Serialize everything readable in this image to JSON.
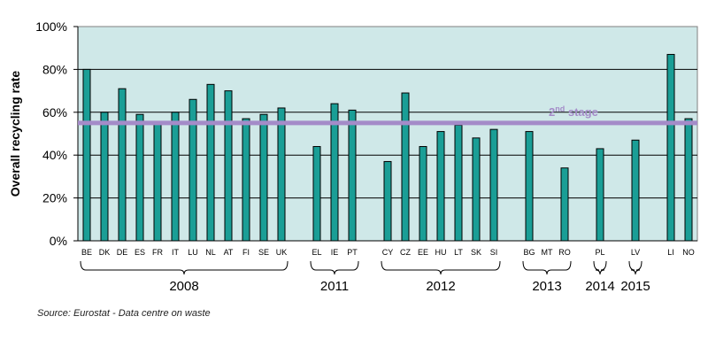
{
  "chart_data": {
    "type": "bar",
    "ylabel": "Overall recycling rate",
    "ylim": [
      0,
      100
    ],
    "yticks": [
      "0%",
      "20%",
      "40%",
      "60%",
      "80%",
      "100%"
    ],
    "categories": [
      "BE",
      "DK",
      "DE",
      "ES",
      "FR",
      "IT",
      "LU",
      "NL",
      "AT",
      "FI",
      "SE",
      "UK",
      "EL",
      "IE",
      "PT",
      "CY",
      "CZ",
      "EE",
      "HU",
      "LT",
      "SK",
      "SI",
      "BG",
      "MT",
      "RO",
      "PL",
      "LV",
      "LI",
      "NO"
    ],
    "values": [
      80,
      60,
      71,
      59,
      55,
      60,
      66,
      73,
      70,
      57,
      59,
      62,
      44,
      64,
      61,
      37,
      69,
      44,
      51,
      54,
      48,
      52,
      51,
      null,
      34,
      43,
      47,
      87,
      57
    ],
    "groups": [
      {
        "label": "2008",
        "categories": [
          "BE",
          "DK",
          "DE",
          "ES",
          "FR",
          "IT",
          "LU",
          "NL",
          "AT",
          "FI",
          "SE",
          "UK"
        ]
      },
      {
        "label": "2011",
        "categories": [
          "EL",
          "IE",
          "PT"
        ]
      },
      {
        "label": "2012",
        "categories": [
          "CY",
          "CZ",
          "EE",
          "HU",
          "LT",
          "SK",
          "SI"
        ]
      },
      {
        "label": "2013",
        "categories": [
          "BG",
          "MT",
          "RO"
        ]
      },
      {
        "label": "2014",
        "categories": [
          "PL"
        ]
      },
      {
        "label": "2015",
        "categories": [
          "LV"
        ]
      }
    ],
    "reference_line": {
      "value": 55,
      "label": "2nd stage",
      "label_main": "2",
      "label_sup": "nd",
      "label_rest": " stage"
    },
    "colors": {
      "bar": "#1a9e96",
      "plot_bg": "#cfe8e8",
      "reference_line": "#a48bc8"
    },
    "grid": true
  },
  "source": "Source: Eurostat - Data centre on waste"
}
